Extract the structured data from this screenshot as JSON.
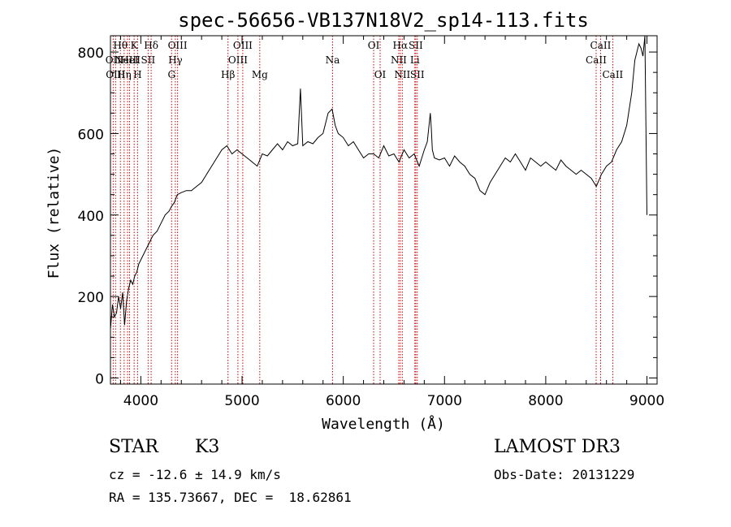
{
  "chart_data": {
    "type": "line",
    "title": "spec-56656-VB137N18V2_sp14-113.fits",
    "xlabel": "Wavelength (Å)",
    "ylabel": "Flux (relative)",
    "xlim": [
      3700,
      9100
    ],
    "ylim": [
      -15,
      840
    ],
    "x_ticks": [
      4000,
      5000,
      6000,
      7000,
      8000,
      9000
    ],
    "y_ticks": [
      0,
      200,
      400,
      600,
      800
    ],
    "grid": false,
    "series": [
      {
        "x": [
          3700,
          3720,
          3740,
          3760,
          3780,
          3800,
          3820,
          3840,
          3860,
          3880,
          3900,
          3920,
          3940,
          3960,
          3980,
          4000,
          4040,
          4080,
          4120,
          4160,
          4200,
          4240,
          4280,
          4300,
          4330,
          4360,
          4400,
          4450,
          4500,
          4550,
          4600,
          4650,
          4700,
          4750,
          4800,
          4850,
          4900,
          4950,
          5000,
          5050,
          5100,
          5150,
          5200,
          5250,
          5300,
          5350,
          5400,
          5450,
          5500,
          5550,
          5577,
          5600,
          5650,
          5700,
          5750,
          5800,
          5850,
          5890,
          5920,
          5950,
          6000,
          6050,
          6100,
          6150,
          6200,
          6250,
          6300,
          6350,
          6400,
          6450,
          6500,
          6550,
          6600,
          6650,
          6700,
          6750,
          6800,
          6830,
          6860,
          6870,
          6880,
          6900,
          6950,
          7000,
          7050,
          7100,
          7150,
          7200,
          7250,
          7300,
          7350,
          7400,
          7450,
          7500,
          7550,
          7600,
          7650,
          7700,
          7750,
          7800,
          7850,
          7900,
          7950,
          8000,
          8050,
          8100,
          8150,
          8200,
          8250,
          8300,
          8350,
          8400,
          8450,
          8500,
          8550,
          8600,
          8650,
          8700,
          8750,
          8800,
          8850,
          8880,
          8900,
          8920,
          8940,
          8960,
          8980,
          9000
        ],
        "y": [
          120,
          180,
          150,
          160,
          200,
          170,
          210,
          130,
          190,
          220,
          240,
          230,
          250,
          260,
          280,
          290,
          310,
          330,
          350,
          360,
          380,
          400,
          410,
          420,
          430,
          450,
          455,
          460,
          460,
          470,
          480,
          500,
          520,
          540,
          560,
          570,
          550,
          560,
          550,
          540,
          530,
          520,
          550,
          545,
          560,
          575,
          560,
          580,
          570,
          575,
          710,
          570,
          580,
          575,
          590,
          600,
          650,
          660,
          620,
          600,
          590,
          570,
          580,
          560,
          540,
          550,
          550,
          540,
          570,
          545,
          550,
          530,
          560,
          540,
          550,
          520,
          560,
          580,
          650,
          610,
          560,
          540,
          535,
          540,
          520,
          545,
          530,
          520,
          500,
          490,
          460,
          450,
          480,
          500,
          520,
          540,
          530,
          550,
          530,
          510,
          540,
          530,
          520,
          530,
          520,
          510,
          535,
          520,
          510,
          500,
          510,
          500,
          490,
          470,
          500,
          520,
          530,
          560,
          580,
          620,
          700,
          780,
          800,
          820,
          810,
          790,
          840,
          400
        ]
      }
    ],
    "lines": [
      {
        "x": 3727,
        "label": "OII",
        "row": 1
      },
      {
        "x": 3750,
        "label": "OIII",
        "row": 2
      },
      {
        "x": 3798,
        "label": "Hθ",
        "row": 0
      },
      {
        "x": 3835,
        "label": "Hη",
        "row": 2
      },
      {
        "x": 3869,
        "label": "NeIII",
        "row": 1
      },
      {
        "x": 3889,
        "label": "HeI",
        "row": 1
      },
      {
        "x": 3934,
        "label": "K",
        "row": 0
      },
      {
        "x": 3968,
        "label": "H",
        "row": 2
      },
      {
        "x": 4072,
        "label": "SII",
        "row": 1
      },
      {
        "x": 4102,
        "label": "Hδ",
        "row": 0
      },
      {
        "x": 4304,
        "label": "G",
        "row": 2
      },
      {
        "x": 4341,
        "label": "Hγ",
        "row": 1
      },
      {
        "x": 4363,
        "label": "OIII",
        "row": 0
      },
      {
        "x": 4861,
        "label": "Hβ",
        "row": 2
      },
      {
        "x": 4959,
        "label": "OIII",
        "row": 1
      },
      {
        "x": 5007,
        "label": "OIII",
        "row": 0
      },
      {
        "x": 5175,
        "label": "Mg",
        "row": 2
      },
      {
        "x": 5894,
        "label": "Na",
        "row": 1
      },
      {
        "x": 6300,
        "label": "OI",
        "row": 0
      },
      {
        "x": 6364,
        "label": "OI",
        "row": 2
      },
      {
        "x": 6548,
        "label": "NII",
        "row": 1
      },
      {
        "x": 6563,
        "label": "Hα",
        "row": 0
      },
      {
        "x": 6583,
        "label": "NII",
        "row": 2
      },
      {
        "x": 6707,
        "label": "Li",
        "row": 1
      },
      {
        "x": 6716,
        "label": "SII",
        "row": 0
      },
      {
        "x": 6731,
        "label": "SII",
        "row": 2
      },
      {
        "x": 8498,
        "label": "CaII",
        "row": 1
      },
      {
        "x": 8542,
        "label": "CaII",
        "row": 0
      },
      {
        "x": 8662,
        "label": "CaII",
        "row": 2
      }
    ],
    "line_color": "#cc0000",
    "data_color": "#000000"
  },
  "info": {
    "class": "STAR",
    "subclass": "K3",
    "survey": "LAMOST DR3",
    "cz": "cz = -12.6 ± 14.9 km/s",
    "obs_date": "Obs-Date: 20131229",
    "coords": "RA = 135.73667, DEC =  18.62861"
  }
}
